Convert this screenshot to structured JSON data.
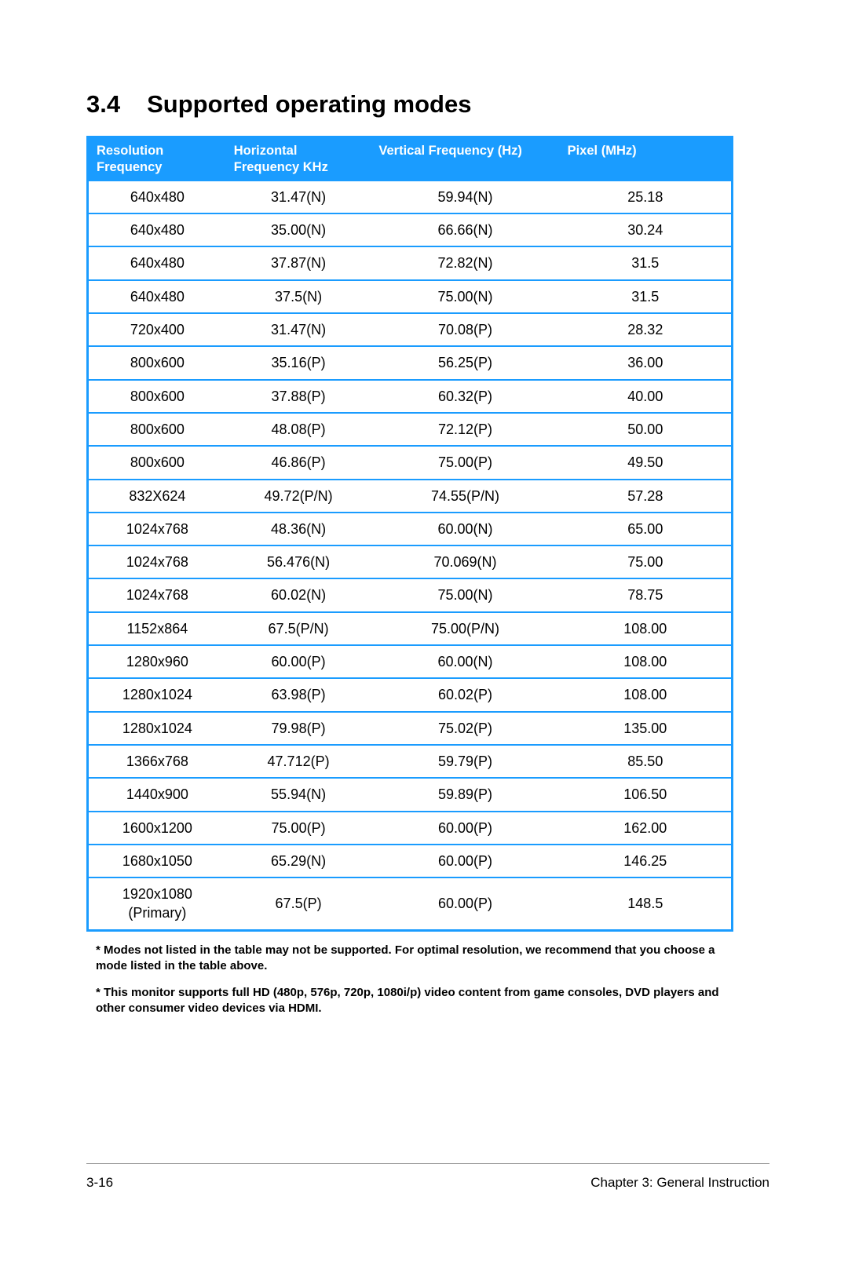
{
  "section": {
    "number": "3.4",
    "title": "Supported operating modes"
  },
  "table": {
    "header_bg": "#1a9cff",
    "border_color": "#1a9cff",
    "header_text_color": "#ffffff",
    "body_text_color": "#000000",
    "columns": [
      "Resolution Frequency",
      "Horizontal Frequency KHz",
      "Vertical Frequency (Hz)",
      "Pixel (MHz)"
    ],
    "rows": [
      [
        "640x480",
        "31.47(N)",
        "59.94(N)",
        "25.18"
      ],
      [
        "640x480",
        "35.00(N)",
        "66.66(N)",
        "30.24"
      ],
      [
        "640x480",
        "37.87(N)",
        "72.82(N)",
        "31.5"
      ],
      [
        "640x480",
        "37.5(N)",
        "75.00(N)",
        "31.5"
      ],
      [
        "720x400",
        "31.47(N)",
        "70.08(P)",
        "28.32"
      ],
      [
        "800x600",
        "35.16(P)",
        "56.25(P)",
        "36.00"
      ],
      [
        "800x600",
        "37.88(P)",
        "60.32(P)",
        "40.00"
      ],
      [
        "800x600",
        "48.08(P)",
        "72.12(P)",
        "50.00"
      ],
      [
        "800x600",
        "46.86(P)",
        "75.00(P)",
        "49.50"
      ],
      [
        "832X624",
        "49.72(P/N)",
        "74.55(P/N)",
        "57.28"
      ],
      [
        "1024x768",
        "48.36(N)",
        "60.00(N)",
        "65.00"
      ],
      [
        "1024x768",
        "56.476(N)",
        "70.069(N)",
        "75.00"
      ],
      [
        "1024x768",
        "60.02(N)",
        "75.00(N)",
        "78.75"
      ],
      [
        "1152x864",
        "67.5(P/N)",
        "75.00(P/N)",
        "108.00"
      ],
      [
        "1280x960",
        "60.00(P)",
        "60.00(N)",
        "108.00"
      ],
      [
        "1280x1024",
        "63.98(P)",
        "60.02(P)",
        "108.00"
      ],
      [
        "1280x1024",
        "79.98(P)",
        "75.02(P)",
        "135.00"
      ],
      [
        "1366x768",
        "47.712(P)",
        "59.79(P)",
        "85.50"
      ],
      [
        "1440x900",
        "55.94(N)",
        "59.89(P)",
        "106.50"
      ],
      [
        "1600x1200",
        "75.00(P)",
        "60.00(P)",
        "162.00"
      ],
      [
        "1680x1050",
        "65.29(N)",
        "60.00(P)",
        "146.25"
      ],
      [
        "1920x1080 (Primary)",
        "67.5(P)",
        "60.00(P)",
        "148.5"
      ]
    ]
  },
  "footnotes": [
    "* Modes not listed in the table may not be supported. For optimal resolution, we recommend that you choose a mode listed in the table above.",
    "* This monitor supports full HD (480p, 576p, 720p, 1080i/p) video content from game consoles, DVD players and other consumer video devices via HDMI."
  ],
  "footer": {
    "page": "3-16",
    "chapter": "Chapter 3: General Instruction"
  }
}
